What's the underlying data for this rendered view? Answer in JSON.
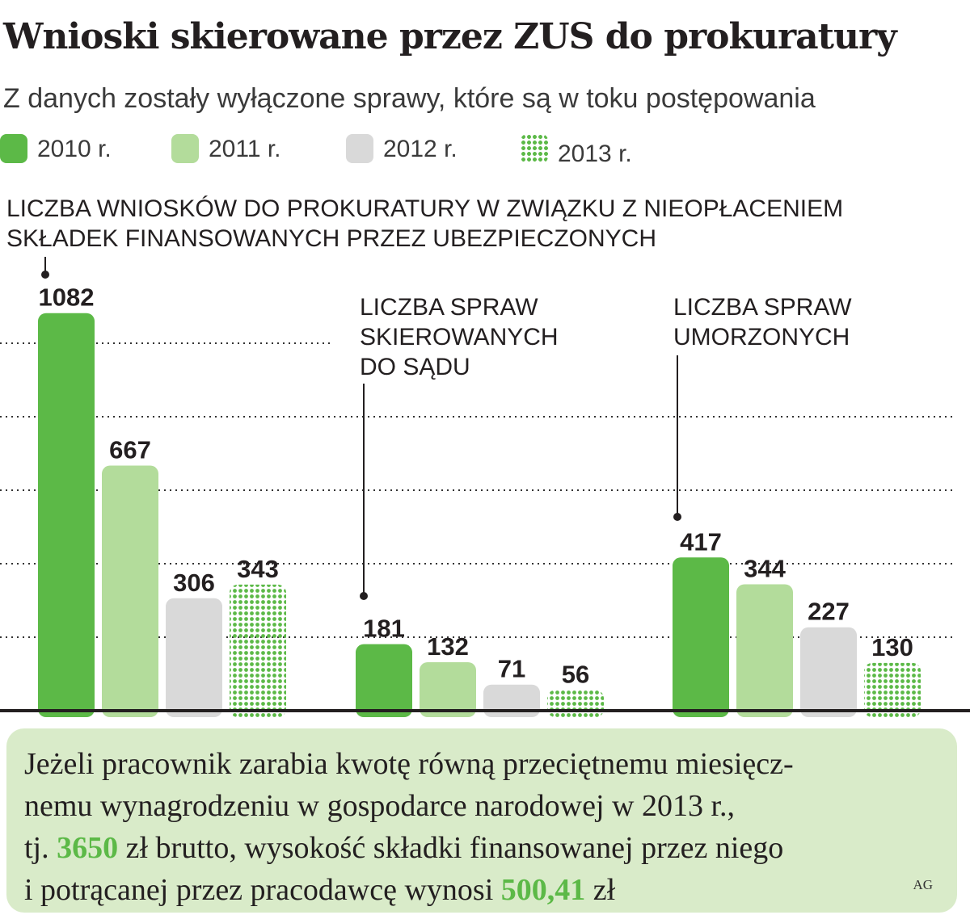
{
  "title": "Wnioski skierowane przez ZUS do prokuratury",
  "subtitle": "Z danych zostały wyłączone sprawy, które są w toku postępowania",
  "colors": {
    "y2010": "#5cb947",
    "y2011": "#b3dc9b",
    "y2012": "#d9d9d9",
    "y2013": "#5cb947",
    "text": "#231f20",
    "note_bg": "#d9ebc9"
  },
  "chart_data": {
    "type": "bar",
    "legend_position": "top",
    "grid": true,
    "ylim": [
      0,
      1100
    ],
    "series_names": [
      "2010 r.",
      "2011 r.",
      "2012 r.",
      "2013 r."
    ],
    "groups": [
      {
        "label_lines": [
          "LICZBA WNIOSKÓW DO PROKURATURY W ZWIĄZKU Z NIEOPŁACENIEM",
          "SKŁADEK FINANSOWANYCH PRZEZ UBEZPIECZONYCH"
        ],
        "values": [
          1082,
          667,
          306,
          343
        ]
      },
      {
        "label_lines": [
          "LICZBA SPRAW",
          "SKIEROWANYCH",
          "DO SĄDU"
        ],
        "values": [
          181,
          132,
          71,
          56
        ]
      },
      {
        "label_lines": [
          "LICZBA SPRAW",
          "UMORZONYCH"
        ],
        "values": [
          417,
          344,
          227,
          130
        ]
      }
    ]
  },
  "note": {
    "line1": "Jeżeli pracownik zarabia kwotę równą przeciętnemu miesięcz-",
    "line2": "nemu wynagrodzeniu w gospodarce narodowej w 2013 r.,",
    "line3_pre": "tj. ",
    "line3_value": "3650",
    "line3_post": " zł brutto, wysokość składki finansowanej przez niego",
    "line4_pre": "i potrącanej przez pracodawcę wynosi ",
    "line4_value": "500,41",
    "line4_post": " zł"
  },
  "credit": "AG"
}
